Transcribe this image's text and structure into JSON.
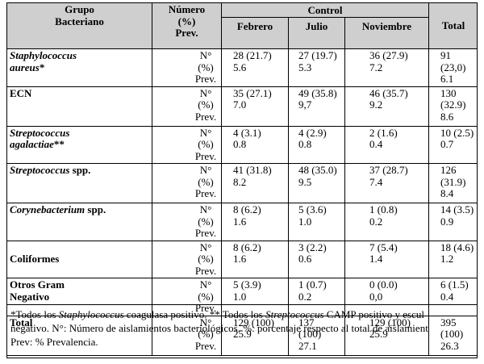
{
  "header": {
    "group": "Grupo\nBacteriano",
    "number": "Número\n(%)\nPrev.",
    "control": "Control",
    "months": [
      "Febrero",
      "Julio",
      "Noviembre"
    ],
    "total": "Total"
  },
  "rows": [
    {
      "name_italic": "Staphylococcus\naureus",
      "name_suffix": "*",
      "metric": "N° (%)\nPrev.",
      "feb": "28 (21.7)\n5.6",
      "jul": "27 (19.7)\n5.3",
      "nov": "36 (27.9)\n7.2",
      "total": "91 (23,0)\n6.1"
    },
    {
      "name_italic": "",
      "name_suffix": "ECN",
      "metric": "N° (%)\nPrev.",
      "feb": "35 (27.1)\n7.0",
      "jul": "49 (35.8)\n9,7",
      "nov": "46 (35.7)\n9.2",
      "total": "130\n(32.9)\n8.6"
    },
    {
      "name_italic": "Streptococcus\nagalactiae",
      "name_suffix": "**",
      "metric": "N° (%)\nPrev.",
      "feb": "4 (3.1)\n0.8",
      "jul": "4 (2.9)\n0.8",
      "nov": "2 (1.6)\n0.4",
      "total": "10 (2.5)\n0.7"
    },
    {
      "name_italic": "Streptococcus",
      "name_suffix": " spp.",
      "metric": "N° (%)\nPrev.",
      "feb": "41 (31.8)\n8.2",
      "jul": "48 (35.0)\n9.5",
      "nov": "37 (28.7)\n7.4",
      "total": "126\n(31.9)\n8.4"
    },
    {
      "name_italic": "Corynebacterium",
      "name_suffix": " spp.",
      "metric": "N° (%)\nPrev.",
      "feb": "8 (6.2)\n1.6",
      "jul": "5 (3.6)\n1.0",
      "nov": "1 (0.8)\n0.2",
      "total": "14 (3.5)\n0.9"
    },
    {
      "name_italic": "",
      "name_suffix": "\nColiformes",
      "metric": "N° (%)\nPrev.",
      "feb": "8 (6.2)\n1.6",
      "jul": "3 (2.2)\n0.6",
      "nov": "7 (5.4)\n1.4",
      "total": "18 (4.6)\n1.2"
    },
    {
      "name_italic": "",
      "name_suffix": "Otros Gram\nNegativo",
      "metric": "N° (%)\nPrev.",
      "feb": "5 (3.9)\n1.0",
      "jul": "1 (0.7)\n0.2",
      "nov": "0 (0.0)\n0,0",
      "total": "6 (1.5)\n0.4"
    },
    {
      "name_italic": "",
      "name_suffix": "Total",
      "metric": "N° (%)\nPrev.",
      "feb": "129 (100)\n25.9",
      "jul": "137\n(100)\n27.1",
      "nov": "129 (100)\n25.9",
      "total": "395\n(100)\n26.3"
    }
  ],
  "footnote": {
    "p1": "*Todos los ",
    "p1_italic": "Staphylococcus",
    "p2": " coagulasa positivo.  **  Todos los ",
    "p2_italic": "Streptococcus",
    "p3": " CAMP positivo y escul",
    "line2": "negativo. N°: Número de aislamientos bacteriológicos.   %: porcentaje respecto al total de aislamient",
    "line3": "Prev: % Prevalencia."
  }
}
